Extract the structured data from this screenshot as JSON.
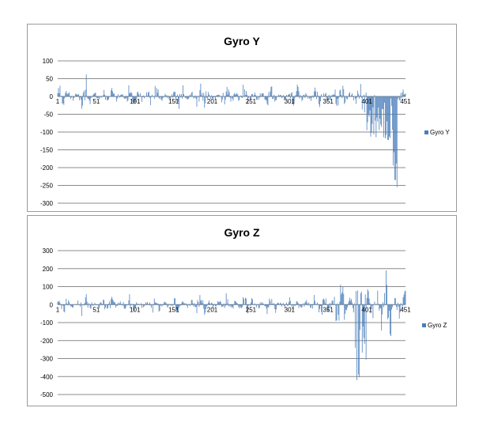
{
  "chart_data": [
    {
      "type": "bar",
      "title": "Gyro Y",
      "series": [
        {
          "name": "Gyro Y",
          "color": "#4a7ebb"
        }
      ],
      "x_range": [
        1,
        451
      ],
      "x_tick_labels": [
        "1",
        "51",
        "101",
        "151",
        "201",
        "251",
        "301",
        "351",
        "401",
        "451"
      ],
      "y_ticks": [
        100,
        50,
        0,
        -50,
        -100,
        -150,
        -200,
        -250,
        -300
      ],
      "ylim": [
        -300,
        100
      ],
      "grid": true,
      "legend_position": "right",
      "approx_extremes": {
        "max": 62,
        "min": -255
      },
      "segments": [
        {
          "from": 1,
          "to": 385,
          "amplitude": 35
        },
        {
          "from": 386,
          "to": 400,
          "amplitude": 50
        },
        {
          "from": 401,
          "to": 438,
          "values_range": [
            -130,
            10
          ]
        },
        {
          "from": 435,
          "to": 440,
          "values_range": [
            -255,
            -150
          ]
        },
        {
          "from": 441,
          "to": 451,
          "amplitude": 45
        }
      ]
    },
    {
      "type": "bar",
      "title": "Gyro Z",
      "series": [
        {
          "name": "Gyro Z",
          "color": "#4a7ebb"
        }
      ],
      "x_range": [
        1,
        451
      ],
      "x_tick_labels": [
        "1",
        "51",
        "101",
        "151",
        "201",
        "251",
        "301",
        "351",
        "401",
        "451"
      ],
      "y_ticks": [
        300,
        200,
        100,
        0,
        -100,
        -200,
        -300,
        -400,
        -500
      ],
      "ylim": [
        -500,
        300
      ],
      "grid": true,
      "legend_position": "right",
      "approx_extremes": {
        "max": 190,
        "min": -420
      },
      "segments": [
        {
          "from": 1,
          "to": 340,
          "amplitude": 60
        },
        {
          "from": 341,
          "to": 385,
          "amplitude": 120
        },
        {
          "from": 386,
          "to": 400,
          "values_range": [
            -420,
            100
          ]
        },
        {
          "from": 401,
          "to": 451,
          "amplitude": 190
        }
      ]
    }
  ]
}
